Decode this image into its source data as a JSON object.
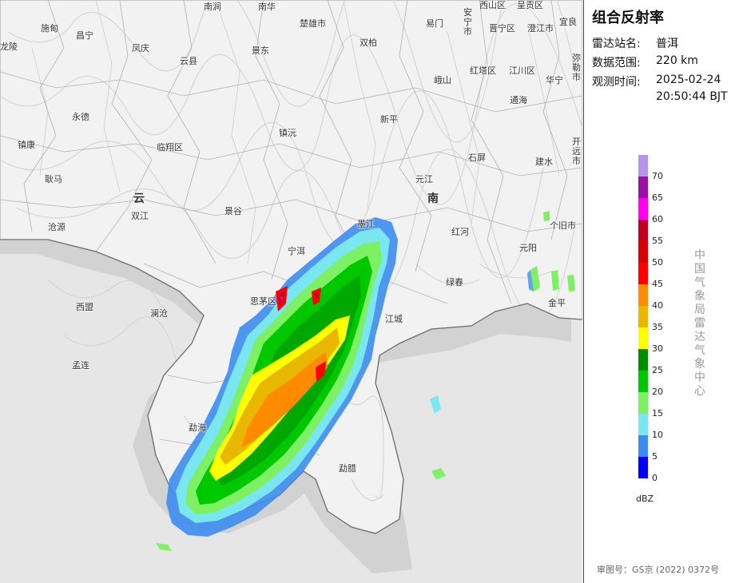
{
  "panel": {
    "title": "组合反射率",
    "station_label": "雷达站名:",
    "station_value": "普洱",
    "range_label": "数据范围:",
    "range_value": "220 km",
    "time_label": "观测时间:",
    "time_date": "2025-02-24",
    "time_clock": "20:50:44 BJT",
    "unit": "dBZ",
    "organization": "中国气象局雷达气象中心",
    "review_number": "审图号：GS京 (2022) 0372号"
  },
  "legend": {
    "labels": [
      "70",
      "65",
      "60",
      "55",
      "50",
      "45",
      "40",
      "35",
      "30",
      "25",
      "20",
      "15",
      "10",
      "5",
      "0"
    ],
    "colors": [
      "#b596e6",
      "#9b0fa3",
      "#ff00f0",
      "#c0001e",
      "#d60000",
      "#ff0000",
      "#ff8c00",
      "#e8b800",
      "#ffff00",
      "#008c00",
      "#00c800",
      "#7ef063",
      "#7ae6f0",
      "#3c8cf0",
      "#0000f6"
    ]
  },
  "map": {
    "provinces": [
      "云",
      "南"
    ],
    "cities": [
      {
        "name": "施甸"
      },
      {
        "name": "昌宁"
      },
      {
        "name": "南涧"
      },
      {
        "name": "南华"
      },
      {
        "name": "楚雄市"
      },
      {
        "name": "易门"
      },
      {
        "name": "西山区"
      },
      {
        "name": "呈贡区"
      },
      {
        "name": "晋宁区"
      },
      {
        "name": "澄江市"
      },
      {
        "name": "宜良"
      },
      {
        "name": "龙陵"
      },
      {
        "name": "凤庆"
      },
      {
        "name": "云县"
      },
      {
        "name": "景东"
      },
      {
        "name": "双柏"
      },
      {
        "name": "峨山"
      },
      {
        "name": "红塔区"
      },
      {
        "name": "江川区"
      },
      {
        "name": "华宁"
      },
      {
        "name": "通海"
      },
      {
        "name": "永德"
      },
      {
        "name": "镇沅"
      },
      {
        "name": "新平"
      },
      {
        "name": "镇康"
      },
      {
        "name": "临翔区"
      },
      {
        "name": "石屏"
      },
      {
        "name": "建水"
      },
      {
        "name": "耿马"
      },
      {
        "name": "元江"
      },
      {
        "name": "双江"
      },
      {
        "name": "景谷"
      },
      {
        "name": "墨江"
      },
      {
        "name": "红河"
      },
      {
        "name": "个旧市"
      },
      {
        "name": "沧源"
      },
      {
        "name": "宁洱"
      },
      {
        "name": "元阳"
      },
      {
        "name": "绿春"
      },
      {
        "name": "思茅区"
      },
      {
        "name": "西盟"
      },
      {
        "name": "澜沧"
      },
      {
        "name": "江城"
      },
      {
        "name": "金平"
      },
      {
        "name": "孟连"
      },
      {
        "name": "勐海"
      },
      {
        "name": "勐腊"
      }
    ],
    "vertical_cities": [
      "安宁市",
      "开远市",
      "弥勒市"
    ]
  }
}
